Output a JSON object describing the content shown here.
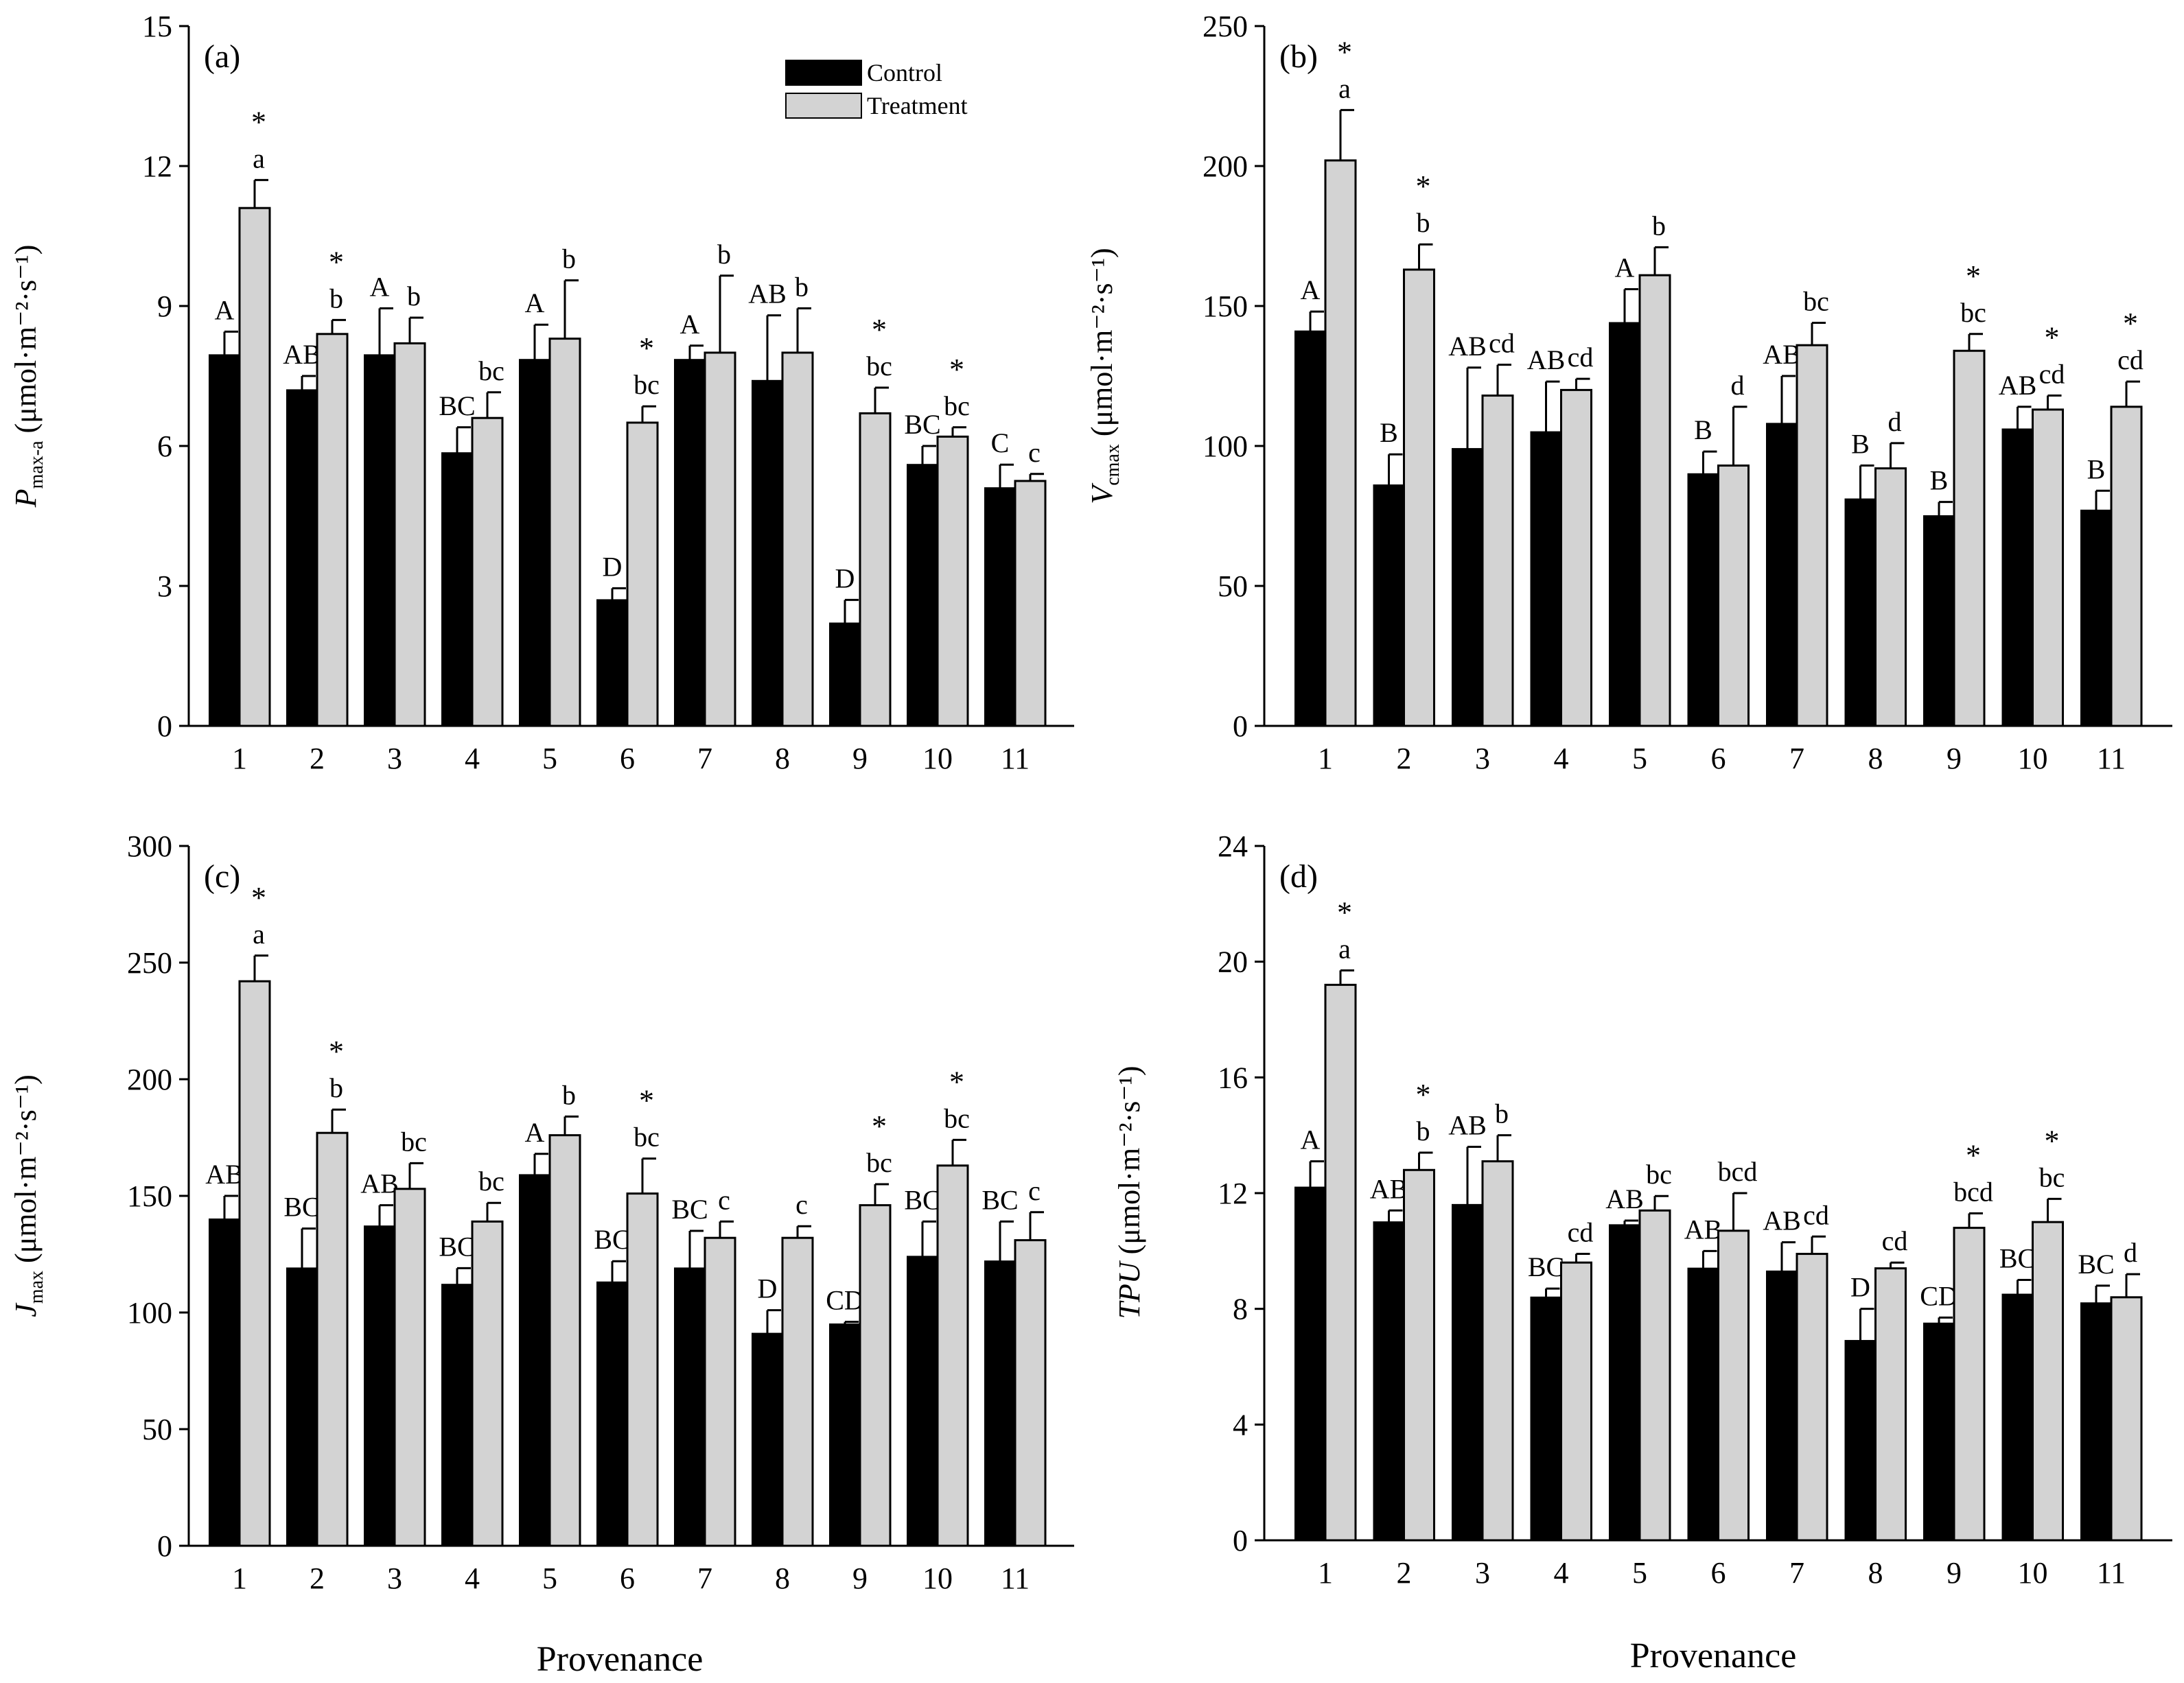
{
  "figure": {
    "xlabel": "Provenance",
    "legend": [
      {
        "label": "Control",
        "color": "#000000"
      },
      {
        "label": "Treatment",
        "color": "#d3d3d3"
      }
    ]
  },
  "colors": {
    "control": "#000000",
    "treatment": "#d3d3d3"
  },
  "chart_data": [
    {
      "type": "bar",
      "panel_tag": "(a)",
      "ylabel_main": "P",
      "ylabel_sub": "max-a",
      "ylabel_unit": " (μmol·m⁻²·s⁻¹)",
      "ylabel_italic": true,
      "ylim": [
        0,
        15
      ],
      "yticks": [
        0,
        3,
        6,
        9,
        12,
        15
      ],
      "categories": [
        "1",
        "2",
        "3",
        "4",
        "5",
        "6",
        "7",
        "8",
        "9",
        "10",
        "11"
      ],
      "series": [
        {
          "name": "Control",
          "values": [
            7.95,
            7.2,
            7.95,
            5.85,
            7.85,
            2.7,
            7.85,
            7.4,
            2.2,
            5.6,
            5.1
          ],
          "errors": [
            0.5,
            0.3,
            1.0,
            0.55,
            0.75,
            0.25,
            0.3,
            1.4,
            0.5,
            0.4,
            0.5
          ],
          "letters": [
            "A",
            "AB",
            "A",
            "BC",
            "A",
            "D",
            "A",
            "AB",
            "D",
            "BC",
            "C"
          ]
        },
        {
          "name": "Treatment",
          "values": [
            11.1,
            8.4,
            8.2,
            6.6,
            8.3,
            6.5,
            8.0,
            8.0,
            6.7,
            6.2,
            5.25
          ],
          "errors": [
            0.6,
            0.3,
            0.55,
            0.55,
            1.25,
            0.35,
            1.65,
            0.95,
            0.55,
            0.2,
            0.15
          ],
          "letters": [
            "a",
            "b",
            "b",
            "bc",
            "b",
            "bc",
            "b",
            "b",
            "bc",
            "bc",
            "c"
          ],
          "stars": [
            true,
            true,
            false,
            false,
            false,
            true,
            false,
            false,
            true,
            true,
            false
          ]
        }
      ],
      "legend_position": "top-center"
    },
    {
      "type": "bar",
      "panel_tag": "(b)",
      "ylabel_main": "V",
      "ylabel_sub": "cmax",
      "ylabel_unit": " (μmol·m⁻²·s⁻¹)",
      "ylabel_italic": true,
      "ylim": [
        0,
        250
      ],
      "yticks": [
        0,
        50,
        100,
        150,
        200,
        250
      ],
      "categories": [
        "1",
        "2",
        "3",
        "4",
        "5",
        "6",
        "7",
        "8",
        "9",
        "10",
        "11"
      ],
      "series": [
        {
          "name": "Control",
          "values": [
            141,
            86,
            99,
            105,
            144,
            90,
            108,
            81,
            75,
            106,
            77
          ],
          "errors": [
            7,
            11,
            29,
            18,
            12,
            8,
            17,
            12,
            5,
            8,
            7
          ],
          "letters": [
            "A",
            "B",
            "AB",
            "AB",
            "A",
            "B",
            "AB",
            "B",
            "B",
            "AB",
            "B"
          ]
        },
        {
          "name": "Treatment",
          "values": [
            202,
            163,
            118,
            120,
            161,
            93,
            136,
            92,
            134,
            113,
            114
          ],
          "errors": [
            18,
            9,
            11,
            4,
            10,
            21,
            8,
            9,
            6,
            5,
            9
          ],
          "letters": [
            "a",
            "b",
            "cd",
            "cd",
            "b",
            "d",
            "bc",
            "d",
            "bc",
            "cd",
            "cd"
          ],
          "stars": [
            true,
            true,
            false,
            false,
            false,
            false,
            false,
            false,
            true,
            true,
            true
          ]
        }
      ]
    },
    {
      "type": "bar",
      "panel_tag": "(c)",
      "ylabel_main": "J",
      "ylabel_sub": "max",
      "ylabel_unit": " (μmol·m⁻²·s⁻¹)",
      "ylabel_italic": true,
      "ylim": [
        0,
        300
      ],
      "yticks": [
        0,
        50,
        100,
        150,
        200,
        250,
        300
      ],
      "categories": [
        "1",
        "2",
        "3",
        "4",
        "5",
        "6",
        "7",
        "8",
        "9",
        "10",
        "11"
      ],
      "series": [
        {
          "name": "Control",
          "values": [
            140,
            119,
            137,
            112,
            159,
            113,
            119,
            91,
            95,
            124,
            122
          ],
          "errors": [
            10,
            17,
            9,
            7,
            9,
            9,
            16,
            10,
            1,
            15,
            17
          ],
          "letters": [
            "AB",
            "BC",
            "AB",
            "BC",
            "A",
            "BC",
            "BC",
            "D",
            "CD",
            "BC",
            "BC"
          ]
        },
        {
          "name": "Treatment",
          "values": [
            242,
            177,
            153,
            139,
            176,
            151,
            132,
            132,
            146,
            163,
            131
          ],
          "errors": [
            11,
            10,
            11,
            8,
            8,
            15,
            7,
            5,
            9,
            11,
            12
          ],
          "letters": [
            "a",
            "b",
            "bc",
            "bc",
            "b",
            "bc",
            "c",
            "c",
            "bc",
            "bc",
            "c"
          ],
          "stars": [
            true,
            true,
            false,
            false,
            false,
            true,
            false,
            false,
            true,
            true,
            false
          ]
        }
      ]
    },
    {
      "type": "bar",
      "panel_tag": "(d)",
      "ylabel_main": "TPU",
      "ylabel_sub": "",
      "ylabel_unit": " (μmol·m⁻²·s⁻¹)",
      "ylabel_italic": true,
      "ylim": [
        0,
        24
      ],
      "yticks": [
        0,
        4,
        8,
        12,
        16,
        20,
        24
      ],
      "categories": [
        "1",
        "2",
        "3",
        "4",
        "5",
        "6",
        "7",
        "8",
        "9",
        "10",
        "11"
      ],
      "series": [
        {
          "name": "Control",
          "values": [
            12.2,
            11.0,
            11.6,
            8.4,
            10.9,
            9.4,
            9.3,
            6.9,
            7.5,
            8.5,
            8.2
          ],
          "errors": [
            0.9,
            0.4,
            2.0,
            0.3,
            0.15,
            0.6,
            1.0,
            1.1,
            0.2,
            0.5,
            0.6
          ],
          "letters": [
            "A",
            "AB",
            "AB",
            "BC",
            "AB",
            "AB",
            "AB",
            "D",
            "CD",
            "BC",
            "BC"
          ]
        },
        {
          "name": "Treatment",
          "values": [
            19.2,
            12.8,
            13.1,
            9.6,
            11.4,
            10.7,
            9.9,
            9.4,
            10.8,
            11.0,
            8.4
          ],
          "errors": [
            0.5,
            0.6,
            0.9,
            0.3,
            0.5,
            1.3,
            0.6,
            0.2,
            0.5,
            0.8,
            0.8
          ],
          "letters": [
            "a",
            "b",
            "b",
            "cd",
            "bc",
            "bcd",
            "cd",
            "cd",
            "bcd",
            "bc",
            "d"
          ],
          "stars": [
            true,
            true,
            false,
            false,
            false,
            false,
            false,
            false,
            true,
            true,
            false
          ]
        }
      ]
    }
  ]
}
